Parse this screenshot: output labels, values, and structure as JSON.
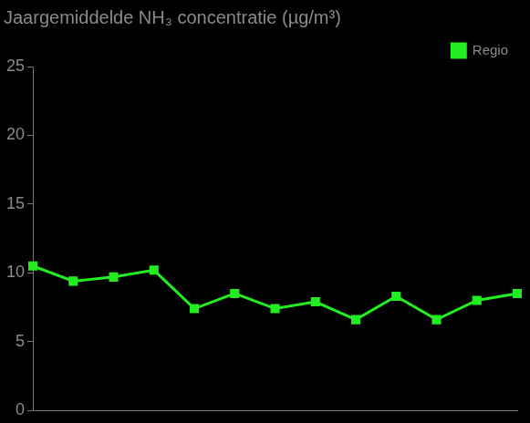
{
  "chart_data": {
    "type": "line",
    "title": "Jaargemiddelde NH₃ concentratie (µg/m³)",
    "categories": [
      null,
      null,
      null,
      null,
      null,
      null,
      null,
      null,
      null,
      null,
      null,
      null,
      null
    ],
    "series": [
      {
        "name": "Regio",
        "color": "#22ee22",
        "marker": "square",
        "line_style": "solid",
        "values": [
          10.5,
          9.4,
          9.7,
          10.2,
          7.4,
          8.5,
          7.4,
          7.9,
          6.6,
          8.3,
          6.6,
          8.0,
          8.5
        ]
      }
    ],
    "ylim": [
      0,
      25
    ],
    "yticks": [
      0,
      5,
      10,
      15,
      20,
      25
    ],
    "grid": false,
    "legend": "upper right",
    "tick_labels": "y"
  }
}
